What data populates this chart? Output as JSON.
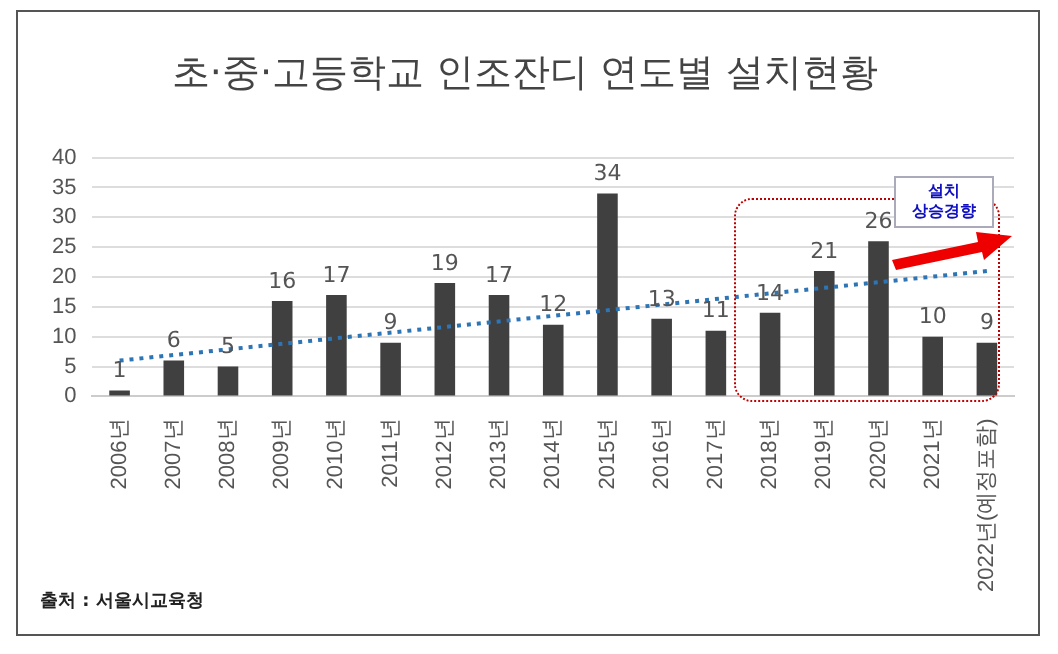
{
  "chart_data": {
    "type": "bar",
    "title": "초·중·고등학교 인조잔디 연도별 설치현황",
    "categories": [
      "2006년",
      "2007년",
      "2008년",
      "2009년",
      "2010년",
      "2011년",
      "2012년",
      "2013년",
      "2014년",
      "2015년",
      "2016년",
      "2017년",
      "2018년",
      "2019년",
      "2020년",
      "2021년",
      "2022년(예정포함)"
    ],
    "series": [
      {
        "color": "#404040",
        "values": [
          1,
          6,
          5,
          16,
          17,
          9,
          19,
          17,
          12,
          34,
          13,
          11,
          14,
          21,
          26,
          10,
          9
        ],
        "value_labels": [
          "1",
          "6",
          "5",
          "16",
          "17",
          "9",
          "19",
          "17",
          "12",
          "34",
          "13",
          "11",
          "14",
          "21",
          "26",
          "10",
          "9"
        ]
      },
      {
        "type": "line",
        "color": "#2e75b6",
        "line_style": "dotted",
        "marker": "none",
        "values": [
          6,
          null,
          null,
          null,
          null,
          null,
          null,
          null,
          null,
          null,
          null,
          null,
          null,
          null,
          null,
          null,
          21
        ]
      }
    ],
    "ylim": [
      0,
      40
    ],
    "yticks": [
      0,
      5,
      10,
      15,
      20,
      25,
      30,
      35,
      40
    ],
    "grid": "y",
    "legend": false,
    "annotations": [
      "설치\n상승경향",
      "출처 : 서울시교육청"
    ]
  }
}
